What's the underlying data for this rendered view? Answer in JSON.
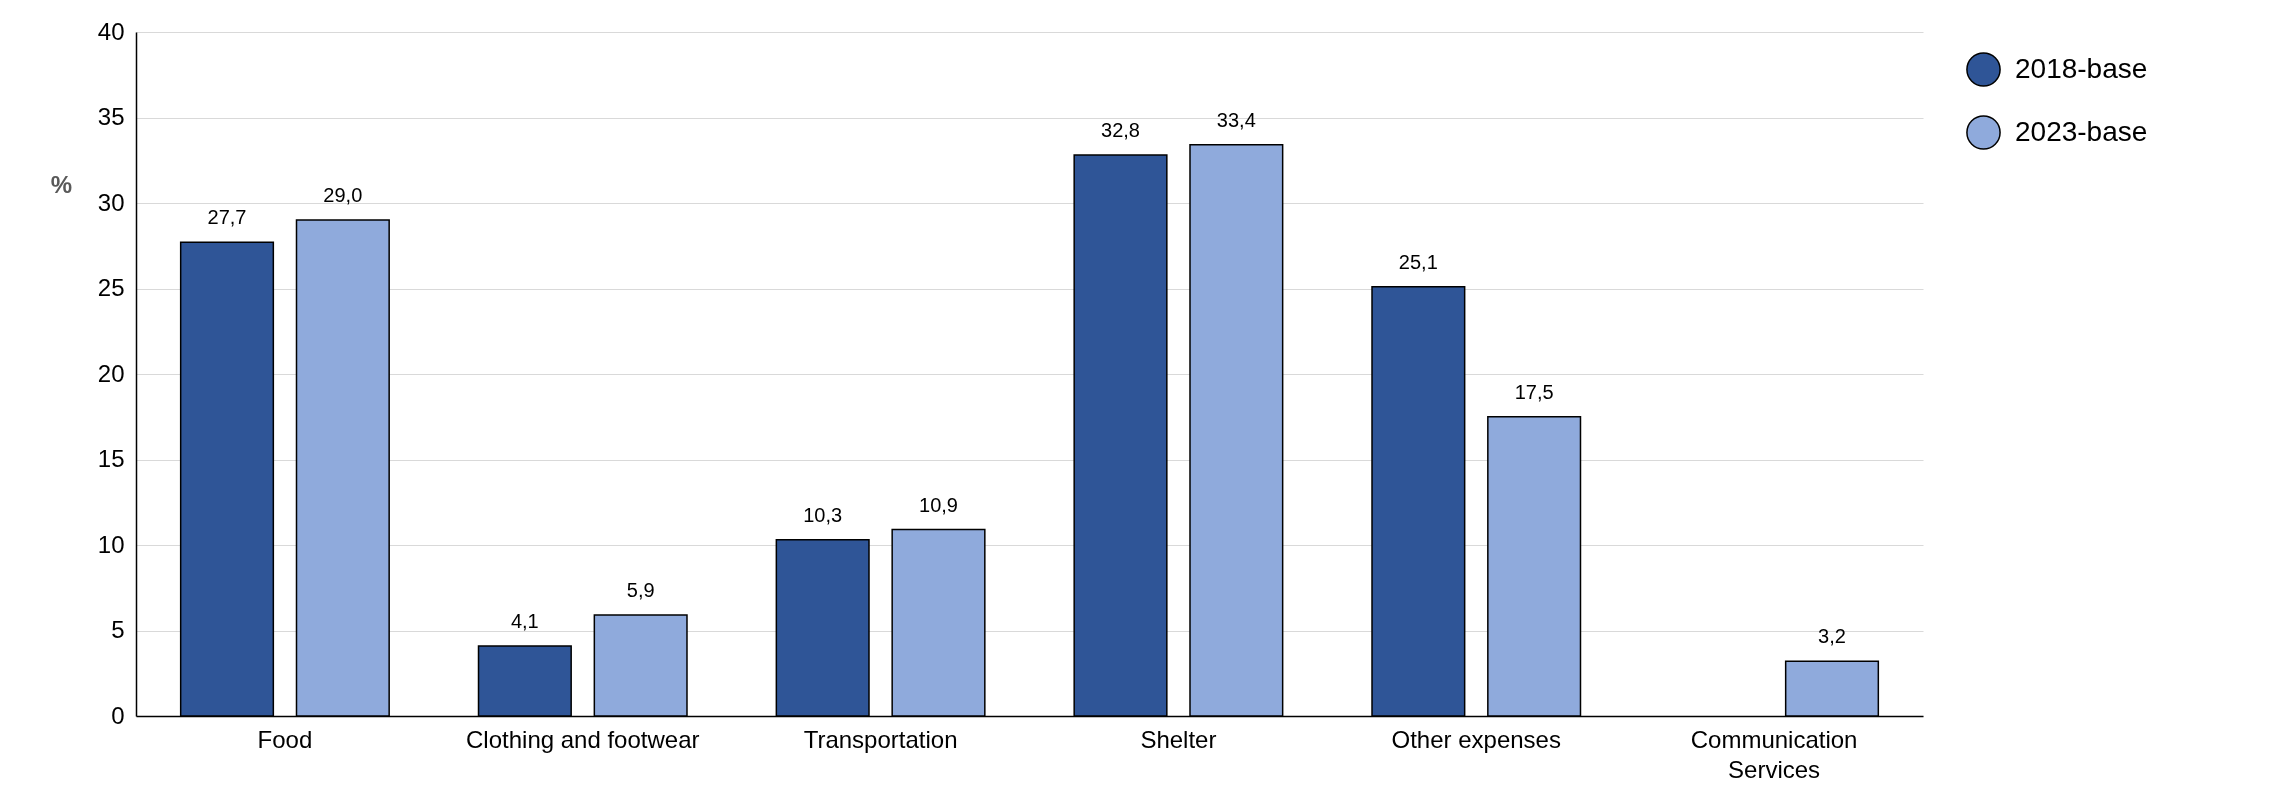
{
  "chart_data": {
    "type": "bar",
    "ylabel": "%",
    "categories": [
      "Food",
      "Clothing and footwear",
      "Transportation",
      "Shelter",
      "Other expenses",
      "Communication Services"
    ],
    "series": [
      {
        "name": "2018-base",
        "color": "#2f5597",
        "values": [
          27.7,
          4.1,
          10.3,
          32.8,
          25.1,
          null
        ],
        "value_labels": [
          "27,7",
          "4,1",
          "10,3",
          "32,8",
          "25,1",
          null
        ]
      },
      {
        "name": "2023-base",
        "color": "#8faadc",
        "values": [
          29.0,
          5.9,
          10.9,
          33.4,
          17.5,
          3.2
        ],
        "value_labels": [
          "29,0",
          "5,9",
          "10,9",
          "33,4",
          "17,5",
          "3,2"
        ]
      }
    ],
    "ylim": [
      0,
      40
    ],
    "yticks": [
      0,
      5,
      10,
      15,
      20,
      25,
      30,
      35,
      40
    ],
    "grid": "y",
    "legend": "top right"
  }
}
